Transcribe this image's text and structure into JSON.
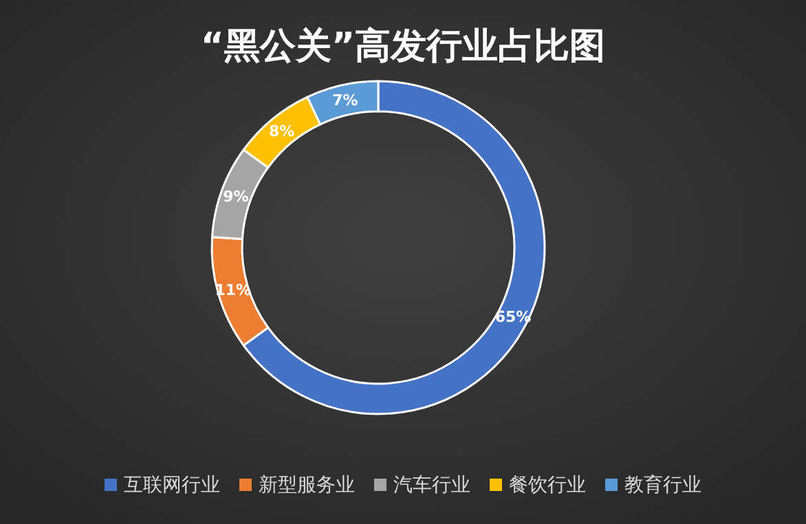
{
  "chart_data": {
    "type": "donut",
    "title": "“黑公关”高发行业占比图",
    "categories": [
      "互联网行业",
      "新型服务业",
      "汽车行业",
      "餐饮行业",
      "教育行业"
    ],
    "values": [
      65,
      11,
      9,
      8,
      7
    ],
    "colors": [
      "#4472c4",
      "#ed7d31",
      "#a5a5a5",
      "#ffc000",
      "#5b9bd5"
    ],
    "value_labels": [
      "65%",
      "11%",
      "9%",
      "8%",
      "7%"
    ],
    "legend": "bottom"
  }
}
